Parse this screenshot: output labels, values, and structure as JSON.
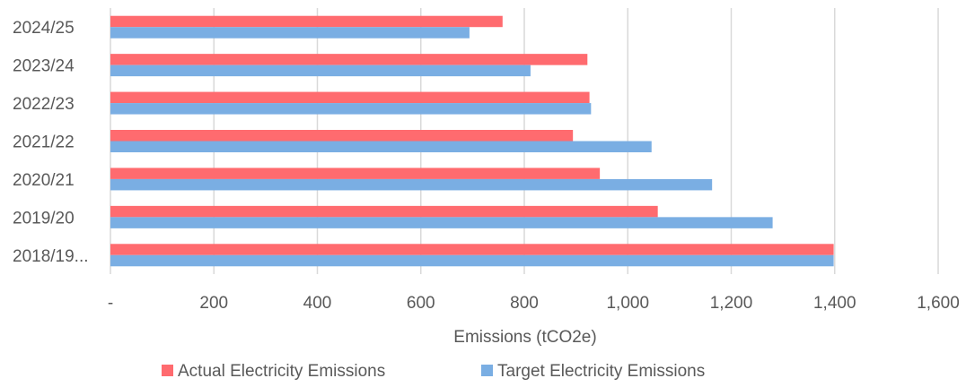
{
  "chart_data": {
    "type": "bar",
    "orientation": "horizontal",
    "categories": [
      "2024/25",
      "2023/24",
      "2022/23",
      "2021/22",
      "2020/21",
      "2019/20",
      "2018/19..."
    ],
    "series": [
      {
        "name": "Actual Electricity Emissions",
        "color": "#ff6b6f",
        "values": [
          758,
          922,
          926,
          894,
          946,
          1058,
          1398
        ]
      },
      {
        "name": "Target Electricity Emissions",
        "color": "#7aaee3",
        "values": [
          694,
          812,
          929,
          1046,
          1163,
          1280,
          1398
        ]
      }
    ],
    "xlabel": "Emissions (tCO2e)",
    "xlim": [
      0,
      1600
    ],
    "xticks": [
      0,
      200,
      400,
      600,
      800,
      1000,
      1200,
      1400,
      1600
    ],
    "xtick_labels": [
      "-",
      "200",
      "400",
      "600",
      "800",
      "1,000",
      "1,200",
      "1,400",
      "1,600"
    ],
    "grid": true,
    "legend_position": "bottom"
  }
}
